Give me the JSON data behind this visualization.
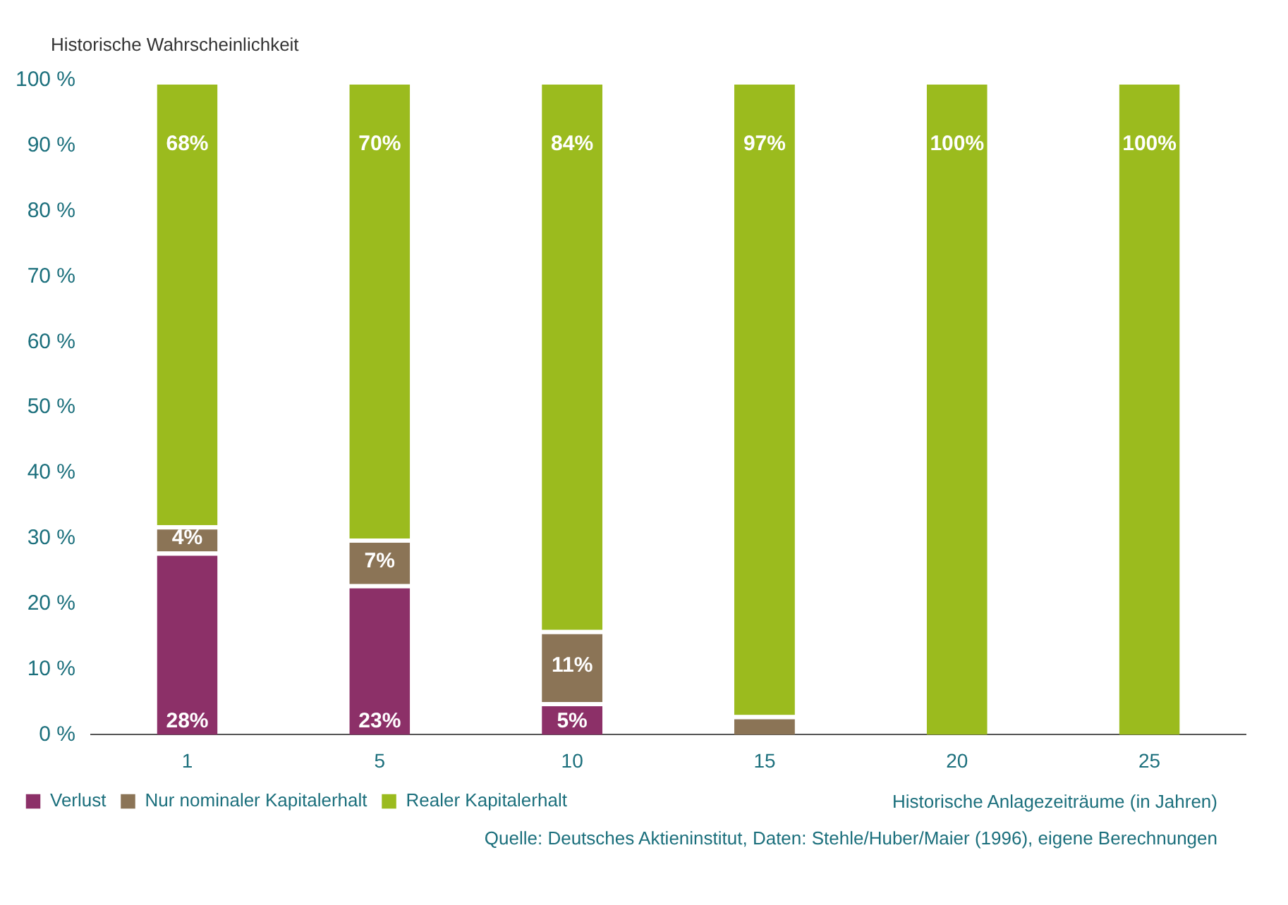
{
  "chart_data": {
    "type": "bar",
    "stacked": true,
    "ylabel": "Historische Wahrscheinlichkeit",
    "xlabel": "Historische Anlagezeiträume (in Jahren)",
    "categories": [
      "1",
      "5",
      "10",
      "15",
      "20",
      "25"
    ],
    "series": [
      {
        "name": "Verlust",
        "color": "#8c3068",
        "values": [
          28,
          23,
          5,
          0,
          0,
          0
        ],
        "value_labels": [
          "28%",
          "23%",
          "5%",
          null,
          null,
          null
        ]
      },
      {
        "name": "Nur nominaler Kapitalerhalt",
        "color": "#8b7456",
        "values": [
          4,
          7,
          11,
          3,
          0,
          0
        ],
        "value_labels": [
          "4%",
          "7%",
          "11%",
          null,
          null,
          null
        ]
      },
      {
        "name": "Realer Kapitalerhalt",
        "color": "#9bbb1e",
        "values": [
          68,
          70,
          84,
          97,
          100,
          100
        ],
        "value_labels": [
          "68%",
          "70%",
          "84%",
          "97%",
          "100%",
          "100%"
        ]
      }
    ],
    "ylim": [
      0,
      100
    ],
    "yticks": [
      {
        "value": 0,
        "label": "0 %"
      },
      {
        "value": 10,
        "label": "10 %"
      },
      {
        "value": 20,
        "label": "20 %"
      },
      {
        "value": 30,
        "label": "30 %"
      },
      {
        "value": 40,
        "label": "40 %"
      },
      {
        "value": 50,
        "label": "50 %"
      },
      {
        "value": 60,
        "label": "60 %"
      },
      {
        "value": 70,
        "label": "70 %"
      },
      {
        "value": 80,
        "label": "80 %"
      },
      {
        "value": 90,
        "label": "90 %"
      },
      {
        "value": 100,
        "label": "100 %"
      }
    ],
    "grid": false,
    "legend": "bottom",
    "annotations": [
      "Quelle: Deutsches Aktieninstitut, Daten: Stehle/Huber/Maier (1996), eigene Berechnungen"
    ]
  }
}
